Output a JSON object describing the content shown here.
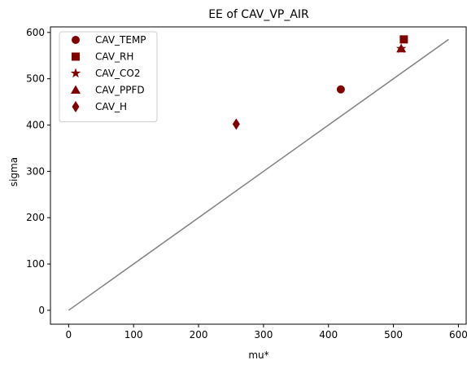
{
  "chart_data": {
    "type": "scatter",
    "title": "EE of CAV_VP_AIR",
    "xlabel": "mu*",
    "ylabel": "sigma",
    "xlim": [
      -28,
      612
    ],
    "ylim": [
      -30,
      612
    ],
    "xticks": [
      0,
      100,
      200,
      300,
      400,
      500,
      600
    ],
    "yticks": [
      0,
      100,
      200,
      300,
      400,
      500,
      600
    ],
    "grid": false,
    "legend_position": "top-left",
    "marker_color": "#800000",
    "reference_line": {
      "color": "#808080",
      "x": [
        0,
        585
      ],
      "y": [
        0,
        585
      ]
    },
    "series": [
      {
        "name": "CAV_TEMP",
        "marker": "circle",
        "x": 419,
        "y": 477
      },
      {
        "name": "CAV_RH",
        "marker": "square",
        "x": 516,
        "y": 585
      },
      {
        "name": "CAV_CO2",
        "marker": "star",
        "x": 512,
        "y": 565
      },
      {
        "name": "CAV_PPFD",
        "marker": "triangle",
        "x": 512,
        "y": 565
      },
      {
        "name": "CAV_H",
        "marker": "diamond",
        "x": 258,
        "y": 402
      }
    ]
  }
}
